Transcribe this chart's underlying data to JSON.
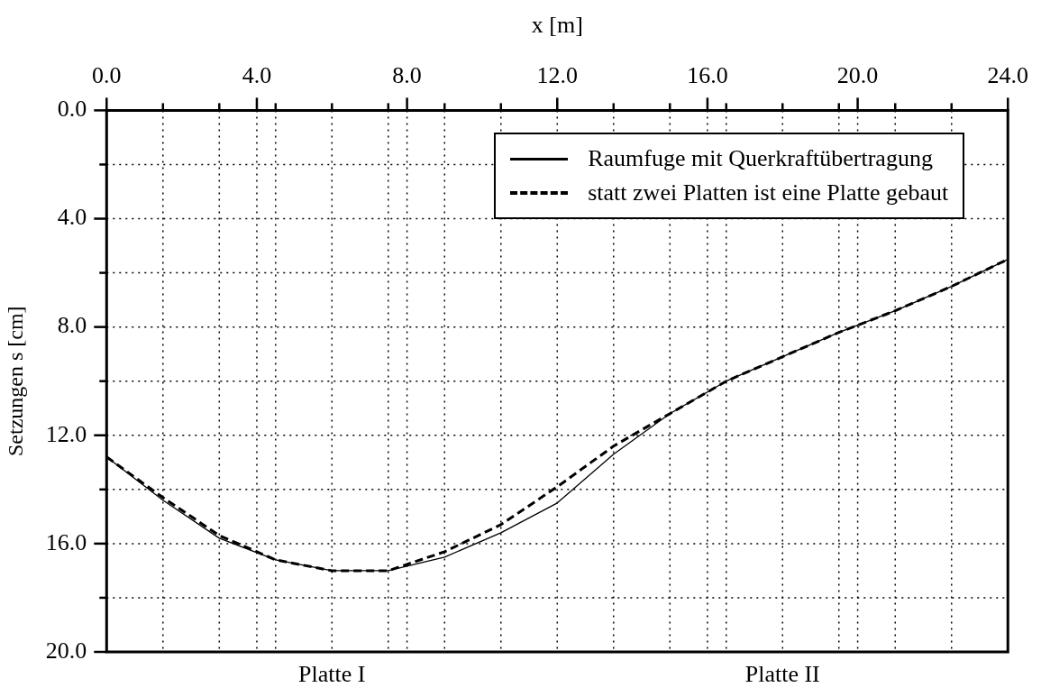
{
  "chart_data": {
    "type": "line",
    "xlabel": "x [m]",
    "ylabel": "Setzungen s [cm]",
    "xlim": [
      0,
      24
    ],
    "ylim": [
      20,
      0
    ],
    "xticks": [
      {
        "value": 0,
        "label": "0.0"
      },
      {
        "value": 1.5,
        "label": null
      },
      {
        "value": 3,
        "label": null
      },
      {
        "value": 4,
        "label": "4.0"
      },
      {
        "value": 4.5,
        "label": null
      },
      {
        "value": 6,
        "label": null
      },
      {
        "value": 7.5,
        "label": null
      },
      {
        "value": 8,
        "label": "8.0"
      },
      {
        "value": 9,
        "label": null
      },
      {
        "value": 10.5,
        "label": null
      },
      {
        "value": 12,
        "label": "12.0"
      },
      {
        "value": 13.5,
        "label": null
      },
      {
        "value": 15,
        "label": null
      },
      {
        "value": 16,
        "label": "16.0"
      },
      {
        "value": 16.5,
        "label": null
      },
      {
        "value": 18,
        "label": null
      },
      {
        "value": 19.5,
        "label": null
      },
      {
        "value": 20,
        "label": "20.0"
      },
      {
        "value": 21,
        "label": null
      },
      {
        "value": 22.5,
        "label": null
      },
      {
        "value": 24,
        "label": "24.0"
      }
    ],
    "yticks": [
      {
        "value": 0,
        "label": "0.0"
      },
      {
        "value": 2,
        "label": null
      },
      {
        "value": 4,
        "label": "4.0"
      },
      {
        "value": 6,
        "label": null
      },
      {
        "value": 8,
        "label": "8.0"
      },
      {
        "value": 10,
        "label": null
      },
      {
        "value": 12,
        "label": "12.0"
      },
      {
        "value": 14,
        "label": null
      },
      {
        "value": 16,
        "label": "16.0"
      },
      {
        "value": 18,
        "label": null
      },
      {
        "value": 20,
        "label": "20.0"
      }
    ],
    "grid": true,
    "legend": "top right",
    "marker": "none",
    "x": [
      0,
      1.5,
      3,
      4.5,
      6,
      7.5,
      9,
      10.5,
      12,
      13.5,
      15,
      16.5,
      18,
      19.5,
      21,
      22.5,
      24
    ],
    "series": [
      {
        "name": "Raumfuge mit Querkraftübertragung",
        "color": "#000000",
        "line_style": "solid",
        "values": [
          12.8,
          14.4,
          15.8,
          16.6,
          17.0,
          17.0,
          16.5,
          15.6,
          14.5,
          12.7,
          11.2,
          10.0,
          9.1,
          8.2,
          7.4,
          6.5,
          5.5
        ]
      },
      {
        "name": "statt zwei Platten ist eine Platte gebaut",
        "color": "#000000",
        "line_style": "dashed",
        "values": [
          12.8,
          14.3,
          15.7,
          16.6,
          17.0,
          17.0,
          16.3,
          15.3,
          13.9,
          12.4,
          11.2,
          10.0,
          9.1,
          8.2,
          7.4,
          6.5,
          5.5
        ]
      }
    ],
    "annotations": [
      "Platte I",
      "Platte II"
    ]
  }
}
